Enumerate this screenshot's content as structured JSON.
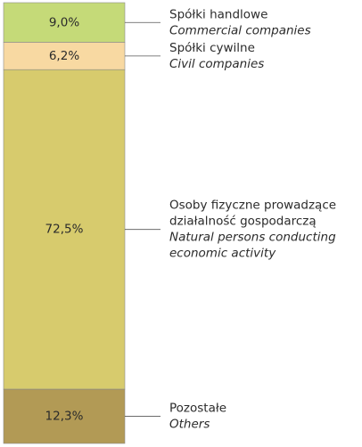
{
  "chart_data": {
    "type": "stacked-bar",
    "ylim": [
      0,
      100
    ],
    "series": [
      {
        "name": [
          "Spółki handlowe"
        ],
        "name_en": [
          "Commercial companies"
        ],
        "color": "#c5da78",
        "values": [
          9.0
        ],
        "value_labels": [
          "9,0%"
        ]
      },
      {
        "name": [
          "Spółki cywilne"
        ],
        "name_en": [
          "Civil companies"
        ],
        "color": "#f8d9a2",
        "values": [
          6.2
        ],
        "value_labels": [
          "6,2%"
        ]
      },
      {
        "name": [
          "Osoby fizyczne prowadzące",
          "działalność gospodarczą"
        ],
        "name_en": [
          "Natural persons conducting",
          "economic activity"
        ],
        "color": "#d7cb6d",
        "values": [
          72.5
        ],
        "value_labels": [
          "72,5%"
        ]
      },
      {
        "name": [
          "Pozostałe"
        ],
        "name_en": [
          "Others"
        ],
        "color": "#b29a55",
        "values": [
          12.3
        ],
        "value_labels": [
          "12,3%"
        ]
      }
    ]
  }
}
